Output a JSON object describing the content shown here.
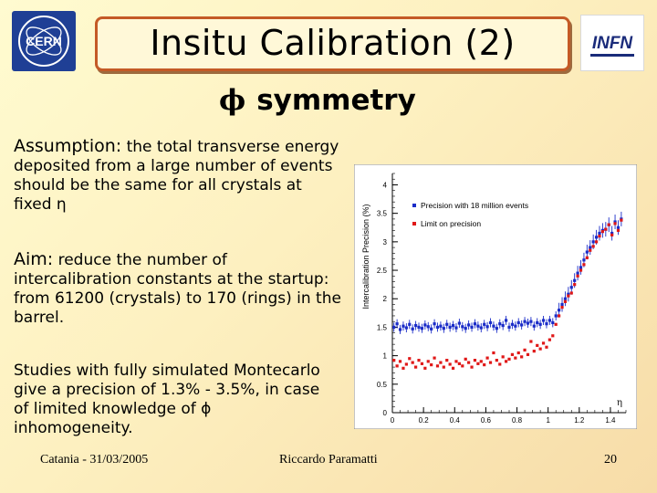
{
  "header": {
    "title": "Insitu Calibration (2)",
    "left_logo": "CERN",
    "right_logo": "INFN"
  },
  "subtitle": {
    "symbol": "ϕ",
    "text": "symmetry"
  },
  "body": {
    "assumption_lead": "Assumption:",
    "assumption_text": "the total transverse energy deposited from a large number of events should be the same for all crystals at fixed η",
    "aim_lead": "Aim:",
    "aim_text": "reduce the number of intercalibration constants at the startup: from 61200 (crystals) to 170 (rings) in the barrel.",
    "studies_text": "Studies with fully simulated Montecarlo give a precision of 1.3% - 3.5%, in case of limited knowledge of ϕ inhomogeneity."
  },
  "footer": {
    "left": "Catania - 31/03/2005",
    "center": "Riccardo Paramatti",
    "page": "20"
  },
  "colors": {
    "title_border": "#c45a26",
    "series_blue": "#1a2cc8",
    "series_red": "#e01818"
  },
  "chart_data": {
    "type": "scatter",
    "ylabel": "Intercalibration Precision (%)",
    "xlabel": "η",
    "xlim": [
      0,
      1.5
    ],
    "ylim": [
      0,
      4.2
    ],
    "xticks": [
      "0",
      "0.2",
      "0.4",
      "0.6",
      "0.8",
      "1",
      "1.2",
      "1.4"
    ],
    "yticks": [
      "0",
      "0.5",
      "1",
      "1.5",
      "2",
      "2.5",
      "3",
      "3.5",
      "4"
    ],
    "legend_position": "top-right",
    "series": [
      {
        "name": "Precision with 18 million events",
        "color": "#1a2cc8",
        "points": [
          [
            0.01,
            1.5
          ],
          [
            0.03,
            1.56
          ],
          [
            0.05,
            1.46
          ],
          [
            0.07,
            1.52
          ],
          [
            0.09,
            1.49
          ],
          [
            0.11,
            1.55
          ],
          [
            0.13,
            1.47
          ],
          [
            0.15,
            1.53
          ],
          [
            0.17,
            1.5
          ],
          [
            0.19,
            1.48
          ],
          [
            0.21,
            1.54
          ],
          [
            0.23,
            1.51
          ],
          [
            0.25,
            1.47
          ],
          [
            0.27,
            1.56
          ],
          [
            0.29,
            1.5
          ],
          [
            0.31,
            1.52
          ],
          [
            0.33,
            1.48
          ],
          [
            0.35,
            1.55
          ],
          [
            0.37,
            1.5
          ],
          [
            0.39,
            1.53
          ],
          [
            0.41,
            1.49
          ],
          [
            0.43,
            1.57
          ],
          [
            0.45,
            1.51
          ],
          [
            0.47,
            1.48
          ],
          [
            0.49,
            1.54
          ],
          [
            0.51,
            1.5
          ],
          [
            0.53,
            1.56
          ],
          [
            0.55,
            1.52
          ],
          [
            0.57,
            1.49
          ],
          [
            0.59,
            1.55
          ],
          [
            0.61,
            1.51
          ],
          [
            0.63,
            1.58
          ],
          [
            0.65,
            1.52
          ],
          [
            0.67,
            1.48
          ],
          [
            0.69,
            1.56
          ],
          [
            0.71,
            1.53
          ],
          [
            0.73,
            1.62
          ],
          [
            0.75,
            1.5
          ],
          [
            0.77,
            1.55
          ],
          [
            0.79,
            1.52
          ],
          [
            0.81,
            1.58
          ],
          [
            0.83,
            1.54
          ],
          [
            0.85,
            1.6
          ],
          [
            0.87,
            1.57
          ],
          [
            0.89,
            1.6
          ],
          [
            0.91,
            1.52
          ],
          [
            0.93,
            1.58
          ],
          [
            0.95,
            1.55
          ],
          [
            0.97,
            1.62
          ],
          [
            0.99,
            1.56
          ],
          [
            1.01,
            1.62
          ],
          [
            1.03,
            1.58
          ],
          [
            1.05,
            1.7
          ],
          [
            1.07,
            1.8
          ],
          [
            1.09,
            1.9
          ],
          [
            1.11,
            2.0
          ],
          [
            1.13,
            2.08
          ],
          [
            1.15,
            2.2
          ],
          [
            1.17,
            2.32
          ],
          [
            1.19,
            2.45
          ],
          [
            1.21,
            2.55
          ],
          [
            1.23,
            2.68
          ],
          [
            1.25,
            2.82
          ],
          [
            1.27,
            2.9
          ],
          [
            1.29,
            3.0
          ],
          [
            1.31,
            3.08
          ],
          [
            1.33,
            3.15
          ],
          [
            1.35,
            3.2
          ],
          [
            1.37,
            3.22
          ],
          [
            1.39,
            3.3
          ],
          [
            1.41,
            3.15
          ],
          [
            1.43,
            3.35
          ],
          [
            1.45,
            3.25
          ],
          [
            1.47,
            3.4
          ]
        ]
      },
      {
        "name": "Limit on precision",
        "color": "#e01818",
        "points": [
          [
            0.01,
            0.92
          ],
          [
            0.03,
            0.82
          ],
          [
            0.05,
            0.9
          ],
          [
            0.07,
            0.78
          ],
          [
            0.09,
            0.85
          ],
          [
            0.11,
            0.95
          ],
          [
            0.13,
            0.88
          ],
          [
            0.15,
            0.8
          ],
          [
            0.17,
            0.92
          ],
          [
            0.19,
            0.86
          ],
          [
            0.21,
            0.78
          ],
          [
            0.23,
            0.9
          ],
          [
            0.25,
            0.84
          ],
          [
            0.27,
            0.96
          ],
          [
            0.29,
            0.82
          ],
          [
            0.31,
            0.88
          ],
          [
            0.33,
            0.8
          ],
          [
            0.35,
            0.92
          ],
          [
            0.37,
            0.85
          ],
          [
            0.39,
            0.78
          ],
          [
            0.41,
            0.9
          ],
          [
            0.43,
            0.86
          ],
          [
            0.45,
            0.82
          ],
          [
            0.47,
            0.94
          ],
          [
            0.49,
            0.88
          ],
          [
            0.51,
            0.8
          ],
          [
            0.53,
            0.92
          ],
          [
            0.55,
            0.86
          ],
          [
            0.57,
            0.9
          ],
          [
            0.59,
            0.84
          ],
          [
            0.61,
            0.96
          ],
          [
            0.63,
            0.88
          ],
          [
            0.65,
            1.05
          ],
          [
            0.67,
            0.92
          ],
          [
            0.69,
            0.85
          ],
          [
            0.71,
            0.98
          ],
          [
            0.73,
            0.9
          ],
          [
            0.75,
            0.94
          ],
          [
            0.77,
            1.02
          ],
          [
            0.79,
            0.96
          ],
          [
            0.81,
            1.05
          ],
          [
            0.83,
            0.98
          ],
          [
            0.85,
            1.1
          ],
          [
            0.87,
            1.02
          ],
          [
            0.89,
            1.25
          ],
          [
            0.91,
            1.08
          ],
          [
            0.93,
            1.18
          ],
          [
            0.95,
            1.12
          ],
          [
            0.97,
            1.22
          ],
          [
            0.99,
            1.15
          ],
          [
            1.01,
            1.28
          ],
          [
            1.03,
            1.35
          ],
          [
            1.05,
            1.55
          ],
          [
            1.07,
            1.7
          ],
          [
            1.09,
            1.85
          ],
          [
            1.11,
            1.95
          ],
          [
            1.13,
            2.05
          ],
          [
            1.15,
            2.1
          ],
          [
            1.17,
            2.25
          ],
          [
            1.19,
            2.4
          ],
          [
            1.21,
            2.5
          ],
          [
            1.23,
            2.6
          ],
          [
            1.25,
            2.72
          ],
          [
            1.27,
            2.85
          ],
          [
            1.29,
            2.92
          ],
          [
            1.31,
            3.0
          ],
          [
            1.33,
            3.1
          ],
          [
            1.35,
            3.18
          ],
          [
            1.37,
            3.22
          ],
          [
            1.39,
            3.3
          ],
          [
            1.41,
            3.12
          ],
          [
            1.43,
            3.32
          ],
          [
            1.45,
            3.2
          ],
          [
            1.47,
            3.38
          ]
        ]
      }
    ]
  }
}
